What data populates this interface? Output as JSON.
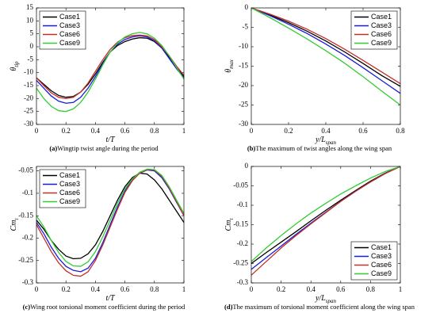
{
  "chart_data": [
    {
      "type": "line",
      "caption_label": "(a)",
      "caption": "Wingtip twist angle during the period",
      "xlabel": "t/T",
      "ylabel": "θ",
      "ylabel_sub": "tip",
      "x": [
        0,
        0.05,
        0.1,
        0.15,
        0.2,
        0.25,
        0.3,
        0.35,
        0.4,
        0.45,
        0.5,
        0.55,
        0.6,
        0.65,
        0.7,
        0.75,
        0.8,
        0.85,
        0.9,
        0.95,
        1
      ],
      "xlim": [
        0,
        1
      ],
      "xticks": [
        0,
        0.2,
        0.4,
        0.6,
        0.8,
        1
      ],
      "ylim": [
        -30,
        15
      ],
      "yticks": [
        -30,
        -25,
        -20,
        -15,
        -10,
        -5,
        0,
        5,
        10,
        15
      ],
      "legend": "upper left",
      "series": [
        {
          "name": "Case1",
          "color": "#000000",
          "values": [
            -12,
            -14.5,
            -17,
            -18.8,
            -19.5,
            -19.2,
            -17.5,
            -14.5,
            -10.5,
            -6,
            -2,
            0.5,
            2,
            3,
            3.5,
            3.3,
            2,
            -0.5,
            -4,
            -8,
            -11.5
          ]
        },
        {
          "name": "Case3",
          "color": "#1a1adc",
          "values": [
            -13,
            -16,
            -19,
            -21,
            -21.8,
            -21.5,
            -19.5,
            -16,
            -11.5,
            -6.5,
            -2,
            1,
            2.8,
            3.8,
            4.2,
            3.8,
            2.3,
            -0.5,
            -4.5,
            -8.5,
            -12
          ]
        },
        {
          "name": "Case6",
          "color": "#c0302a",
          "values": [
            -12,
            -15,
            -17.8,
            -19.5,
            -20,
            -19.5,
            -17.5,
            -14,
            -9.5,
            -5,
            -1,
            1.8,
            3.5,
            4.3,
            4.5,
            4.2,
            2.8,
            0,
            -3.5,
            -7.5,
            -11
          ]
        },
        {
          "name": "Case9",
          "color": "#33cc33",
          "values": [
            -16,
            -20,
            -23,
            -24.7,
            -25,
            -24,
            -21.5,
            -17.5,
            -12.5,
            -7,
            -2,
            1.5,
            3.8,
            5,
            5.5,
            5,
            3.3,
            0.5,
            -3.5,
            -8,
            -12.5
          ]
        }
      ]
    },
    {
      "type": "line",
      "caption_label": "(b)",
      "caption": "The maximum of twist angles along the wing span",
      "xlabel": "y/L",
      "xlabel_sub": "span",
      "ylabel": "θ",
      "ylabel_sub": "max",
      "x": [
        0,
        0.1,
        0.2,
        0.3,
        0.4,
        0.5,
        0.6,
        0.7,
        0.8
      ],
      "xlim": [
        0,
        0.8
      ],
      "xticks": [
        0,
        0.2,
        0.4,
        0.6,
        0.8
      ],
      "ylim": [
        -30,
        0
      ],
      "yticks": [
        -30,
        -25,
        -20,
        -15,
        -10,
        -5,
        0
      ],
      "legend": "upper right",
      "series": [
        {
          "name": "Case1",
          "color": "#000000",
          "values": [
            0,
            -1.8,
            -3.8,
            -6,
            -8.5,
            -11.3,
            -14.3,
            -17.4,
            -20.2
          ]
        },
        {
          "name": "Case3",
          "color": "#1a1adc",
          "values": [
            0,
            -2,
            -4.2,
            -6.6,
            -9.3,
            -12.2,
            -15.4,
            -18.7,
            -22
          ]
        },
        {
          "name": "Case6",
          "color": "#c0302a",
          "values": [
            0,
            -1.6,
            -3.4,
            -5.5,
            -7.9,
            -10.6,
            -13.5,
            -16.5,
            -19.5
          ]
        },
        {
          "name": "Case9",
          "color": "#33cc33",
          "values": [
            0,
            -2.5,
            -5.2,
            -8,
            -11,
            -14.2,
            -17.7,
            -21.4,
            -25
          ]
        }
      ]
    },
    {
      "type": "line",
      "caption_label": "(c)",
      "caption": "Wing root torsional moment coefficient during the period",
      "xlabel": "t/T",
      "ylabel": "Cm",
      "ylabel_sub": "t",
      "x": [
        0,
        0.05,
        0.1,
        0.15,
        0.2,
        0.25,
        0.3,
        0.35,
        0.4,
        0.45,
        0.5,
        0.55,
        0.6,
        0.65,
        0.7,
        0.75,
        0.8,
        0.85,
        0.9,
        0.95,
        1
      ],
      "xlim": [
        0,
        1
      ],
      "xticks": [
        0,
        0.2,
        0.4,
        0.6,
        0.8,
        1
      ],
      "ylim": [
        -0.3,
        -0.04
      ],
      "yticks": [
        -0.3,
        -0.25,
        -0.2,
        -0.15,
        -0.1,
        -0.05
      ],
      "legend": "upper left",
      "series": [
        {
          "name": "Case1",
          "color": "#000000",
          "values": [
            -0.16,
            -0.18,
            -0.205,
            -0.225,
            -0.24,
            -0.246,
            -0.245,
            -0.235,
            -0.215,
            -0.185,
            -0.15,
            -0.115,
            -0.085,
            -0.065,
            -0.055,
            -0.057,
            -0.07,
            -0.09,
            -0.115,
            -0.14,
            -0.165
          ]
        },
        {
          "name": "Case3",
          "color": "#1a1adc",
          "values": [
            -0.165,
            -0.19,
            -0.22,
            -0.245,
            -0.263,
            -0.272,
            -0.275,
            -0.267,
            -0.245,
            -0.21,
            -0.17,
            -0.13,
            -0.095,
            -0.07,
            -0.055,
            -0.048,
            -0.05,
            -0.065,
            -0.09,
            -0.12,
            -0.15
          ]
        },
        {
          "name": "Case6",
          "color": "#c0302a",
          "values": [
            -0.17,
            -0.2,
            -0.23,
            -0.255,
            -0.273,
            -0.283,
            -0.285,
            -0.275,
            -0.25,
            -0.215,
            -0.175,
            -0.135,
            -0.098,
            -0.072,
            -0.055,
            -0.047,
            -0.048,
            -0.062,
            -0.088,
            -0.118,
            -0.15
          ]
        },
        {
          "name": "Case9",
          "color": "#33cc33",
          "values": [
            -0.15,
            -0.175,
            -0.205,
            -0.232,
            -0.252,
            -0.262,
            -0.263,
            -0.253,
            -0.23,
            -0.197,
            -0.16,
            -0.122,
            -0.09,
            -0.068,
            -0.053,
            -0.046,
            -0.047,
            -0.06,
            -0.085,
            -0.115,
            -0.145
          ]
        }
      ]
    },
    {
      "type": "line",
      "caption_label": "(d)",
      "caption": "The maximum of torsional moment coefficient along the wing span",
      "xlabel": "y/L",
      "xlabel_sub": "span",
      "ylabel": "Cm",
      "ylabel_sub": "t",
      "x": [
        0,
        0.1,
        0.2,
        0.3,
        0.4,
        0.5,
        0.6,
        0.7,
        0.8,
        0.9,
        1
      ],
      "xlim": [
        0,
        1
      ],
      "xticks": [
        0,
        0.2,
        0.4,
        0.6,
        0.8,
        1
      ],
      "ylim": [
        -0.3,
        0
      ],
      "yticks": [
        -0.3,
        -0.25,
        -0.2,
        -0.15,
        -0.1,
        -0.05,
        0
      ],
      "legend": "lower right",
      "series": [
        {
          "name": "Case1",
          "color": "#000000",
          "values": [
            -0.25,
            -0.222,
            -0.195,
            -0.168,
            -0.14,
            -0.113,
            -0.087,
            -0.062,
            -0.038,
            -0.017,
            0
          ]
        },
        {
          "name": "Case3",
          "color": "#1a1adc",
          "values": [
            -0.265,
            -0.235,
            -0.205,
            -0.175,
            -0.146,
            -0.118,
            -0.09,
            -0.064,
            -0.04,
            -0.018,
            0
          ]
        },
        {
          "name": "Case6",
          "color": "#c0302a",
          "values": [
            -0.28,
            -0.245,
            -0.21,
            -0.178,
            -0.148,
            -0.119,
            -0.09,
            -0.064,
            -0.04,
            -0.018,
            0
          ]
        },
        {
          "name": "Case9",
          "color": "#33cc33",
          "values": [
            -0.245,
            -0.21,
            -0.178,
            -0.148,
            -0.12,
            -0.095,
            -0.071,
            -0.05,
            -0.03,
            -0.013,
            0
          ]
        }
      ]
    }
  ]
}
